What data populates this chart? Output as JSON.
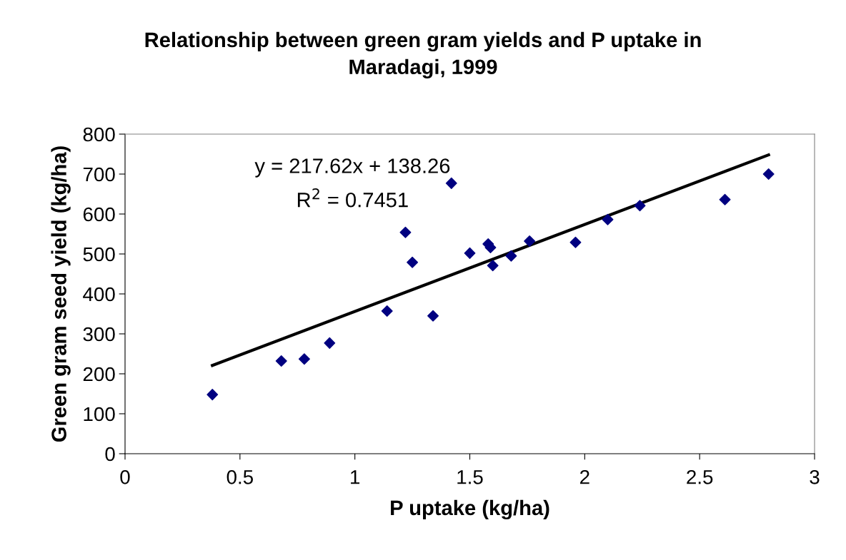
{
  "chart_data": {
    "type": "scatter",
    "title": "Relationship between green gram yields and P uptake in\nMaradagi, 1999",
    "xlabel": "P uptake (kg/ha)",
    "ylabel": "Green gram seed yield (kg/ha)",
    "series": [
      {
        "color": "#000080",
        "marker": "diamond",
        "x": [
          0.38,
          0.68,
          0.78,
          0.89,
          1.14,
          1.22,
          1.25,
          1.34,
          1.42,
          1.5,
          1.58,
          1.59,
          1.6,
          1.68,
          1.76,
          1.96,
          2.1,
          2.24,
          2.61,
          2.8
        ],
        "values": [
          148,
          232,
          237,
          277,
          357,
          554,
          479,
          345,
          677,
          502,
          525,
          516,
          471,
          495,
          532,
          529,
          586,
          621,
          636,
          700
        ]
      },
      {
        "type": "line",
        "color": "#000000",
        "marker": "none",
        "x": [
          0.38,
          2.8
        ],
        "values": [
          221,
          748
        ]
      }
    ],
    "xlim": [
      0,
      3
    ],
    "xticks": [
      0,
      0.5,
      1,
      1.5,
      2,
      2.5,
      3
    ],
    "ylim": [
      0,
      800
    ],
    "yticks": [
      0,
      100,
      200,
      300,
      400,
      500,
      600,
      700,
      800
    ],
    "grid": false,
    "legend": false,
    "annotations": [
      "y = 217.62x + 138.26",
      "R$^{2}$ = 0.7451"
    ]
  }
}
